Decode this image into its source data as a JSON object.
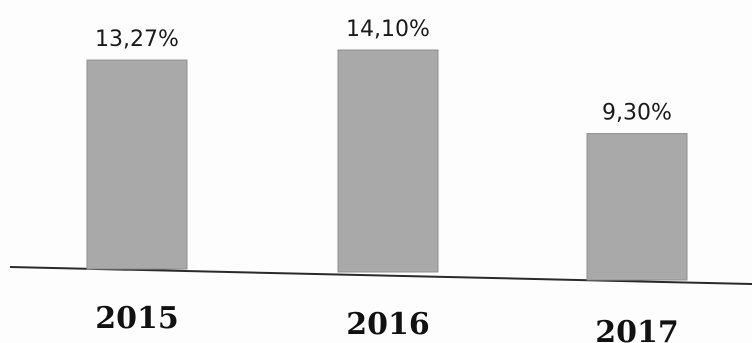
{
  "chart_data": {
    "type": "bar",
    "categories": [
      "2015",
      "2016",
      "2017"
    ],
    "values": [
      13.27,
      14.1,
      9.3
    ],
    "value_labels": [
      "13,27%",
      "14,10%",
      "9,30%"
    ],
    "title": "",
    "xlabel": "",
    "ylabel": "",
    "ylim": [
      0,
      14.1
    ],
    "grid": false,
    "colors": {
      "bar": "#a9a9a9",
      "baseline": "#2a2a2a"
    }
  }
}
